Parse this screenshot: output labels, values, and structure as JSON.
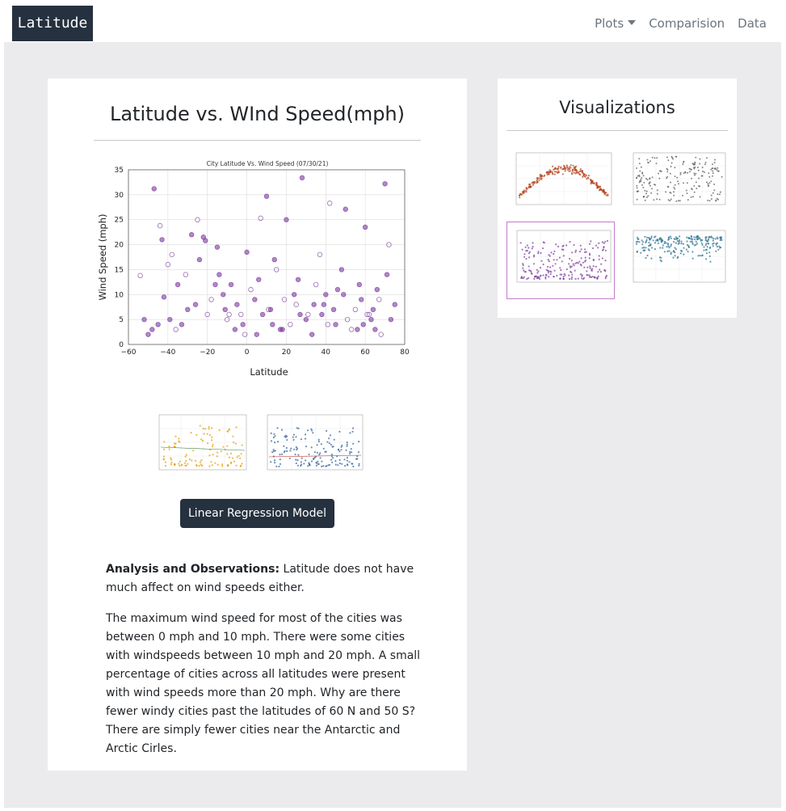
{
  "navbar": {
    "brand": "Latitude",
    "links": [
      {
        "label": "Plots",
        "dropdown": true
      },
      {
        "label": "Comparision",
        "dropdown": false
      },
      {
        "label": "Data",
        "dropdown": false
      }
    ]
  },
  "main": {
    "title": "Latitude vs. WInd Speed(mph)",
    "regression_button": "Linear Regression Model",
    "analysis_heading": "Analysis and Observations:",
    "analysis_intro": "Latitude does not have much affect on wind speeds either.",
    "analysis_body": "The maximum wind speed for most of the cities was between 0 mph and 10 mph. There were some cities with windspeeds between 10 mph and 20 mph. A small percentage of cities across all latitudes were present with wind speeds more than 20 mph. Why are there fewer windy cities past the latitudes of 60 N and 50 S? There are simply fewer cities near the Antarctic and Arctic Cirles."
  },
  "sidebar": {
    "title": "Visualizations"
  },
  "colors": {
    "brand_bg": "#26313f",
    "page_bg": "#ebebed",
    "wind_points": "#7b3b9e",
    "temp_points": "#b5421e",
    "cloud_points": "#555555",
    "south_points": "#e69a00",
    "north_points": "#2f5f9a",
    "humidity_points": "#2a6f8f"
  },
  "chart_data": {
    "type": "scatter",
    "title": "City Latitude Vs. Wind Speed (07/30/21)",
    "xlabel": "Latitude",
    "ylabel": "Wind Speed (mph)",
    "xlim": [
      -60,
      80
    ],
    "ylim": [
      0,
      35
    ],
    "xticks": [
      -60,
      -40,
      -20,
      0,
      20,
      40,
      60,
      80
    ],
    "yticks": [
      0,
      5,
      10,
      15,
      20,
      25,
      30,
      35
    ],
    "grid": true,
    "marker": "circle",
    "color": "#7b3b9e",
    "series": [
      {
        "x": [
          -54,
          -47,
          -45,
          -44,
          -43,
          -42,
          -38,
          -35,
          -30,
          -25,
          -22,
          -21,
          -20,
          -15,
          -12,
          -10,
          -8,
          -5,
          -3,
          0,
          5,
          7,
          10,
          12,
          15,
          18,
          20,
          25,
          28,
          30,
          35,
          38,
          40,
          42,
          45,
          50,
          55,
          58,
          60,
          62,
          65,
          70,
          72,
          75,
          -50,
          -40,
          -33,
          -28,
          -18,
          -14,
          -6,
          2,
          8,
          14,
          22,
          26,
          33,
          37,
          44,
          48,
          53,
          57,
          63,
          67,
          71,
          -52,
          -36,
          -26,
          -16,
          -9,
          -2,
          4,
          11,
          17,
          24,
          31,
          39,
          46,
          51,
          59,
          64,
          68,
          -48,
          -39,
          -31,
          -24,
          -11,
          -1,
          6,
          13,
          19,
          27,
          34,
          41,
          49,
          56,
          61,
          66,
          73
        ],
        "y": [
          13.8,
          31.2,
          4,
          23.8,
          21,
          9.5,
          18,
          12,
          7,
          25,
          21.5,
          20.8,
          6,
          19.5,
          10,
          5,
          12,
          8,
          6,
          18.5,
          2,
          25.3,
          29.7,
          7,
          15,
          3,
          25,
          8,
          33.4,
          5,
          12,
          6,
          10,
          28.3,
          4,
          27.1,
          7,
          9,
          23.5,
          6,
          3,
          32.2,
          20,
          8,
          2,
          16,
          4,
          22,
          9,
          14,
          3,
          11,
          6,
          17,
          4,
          13,
          2,
          18,
          7,
          15,
          3,
          12,
          5,
          9,
          14,
          5,
          3,
          8,
          12,
          6,
          4,
          9,
          7,
          3,
          10,
          6,
          8,
          11,
          5,
          4,
          7,
          2,
          3,
          5,
          14,
          17,
          7,
          2,
          13,
          4,
          9,
          6,
          8,
          4,
          10,
          3,
          6,
          11,
          5
        ]
      }
    ]
  }
}
